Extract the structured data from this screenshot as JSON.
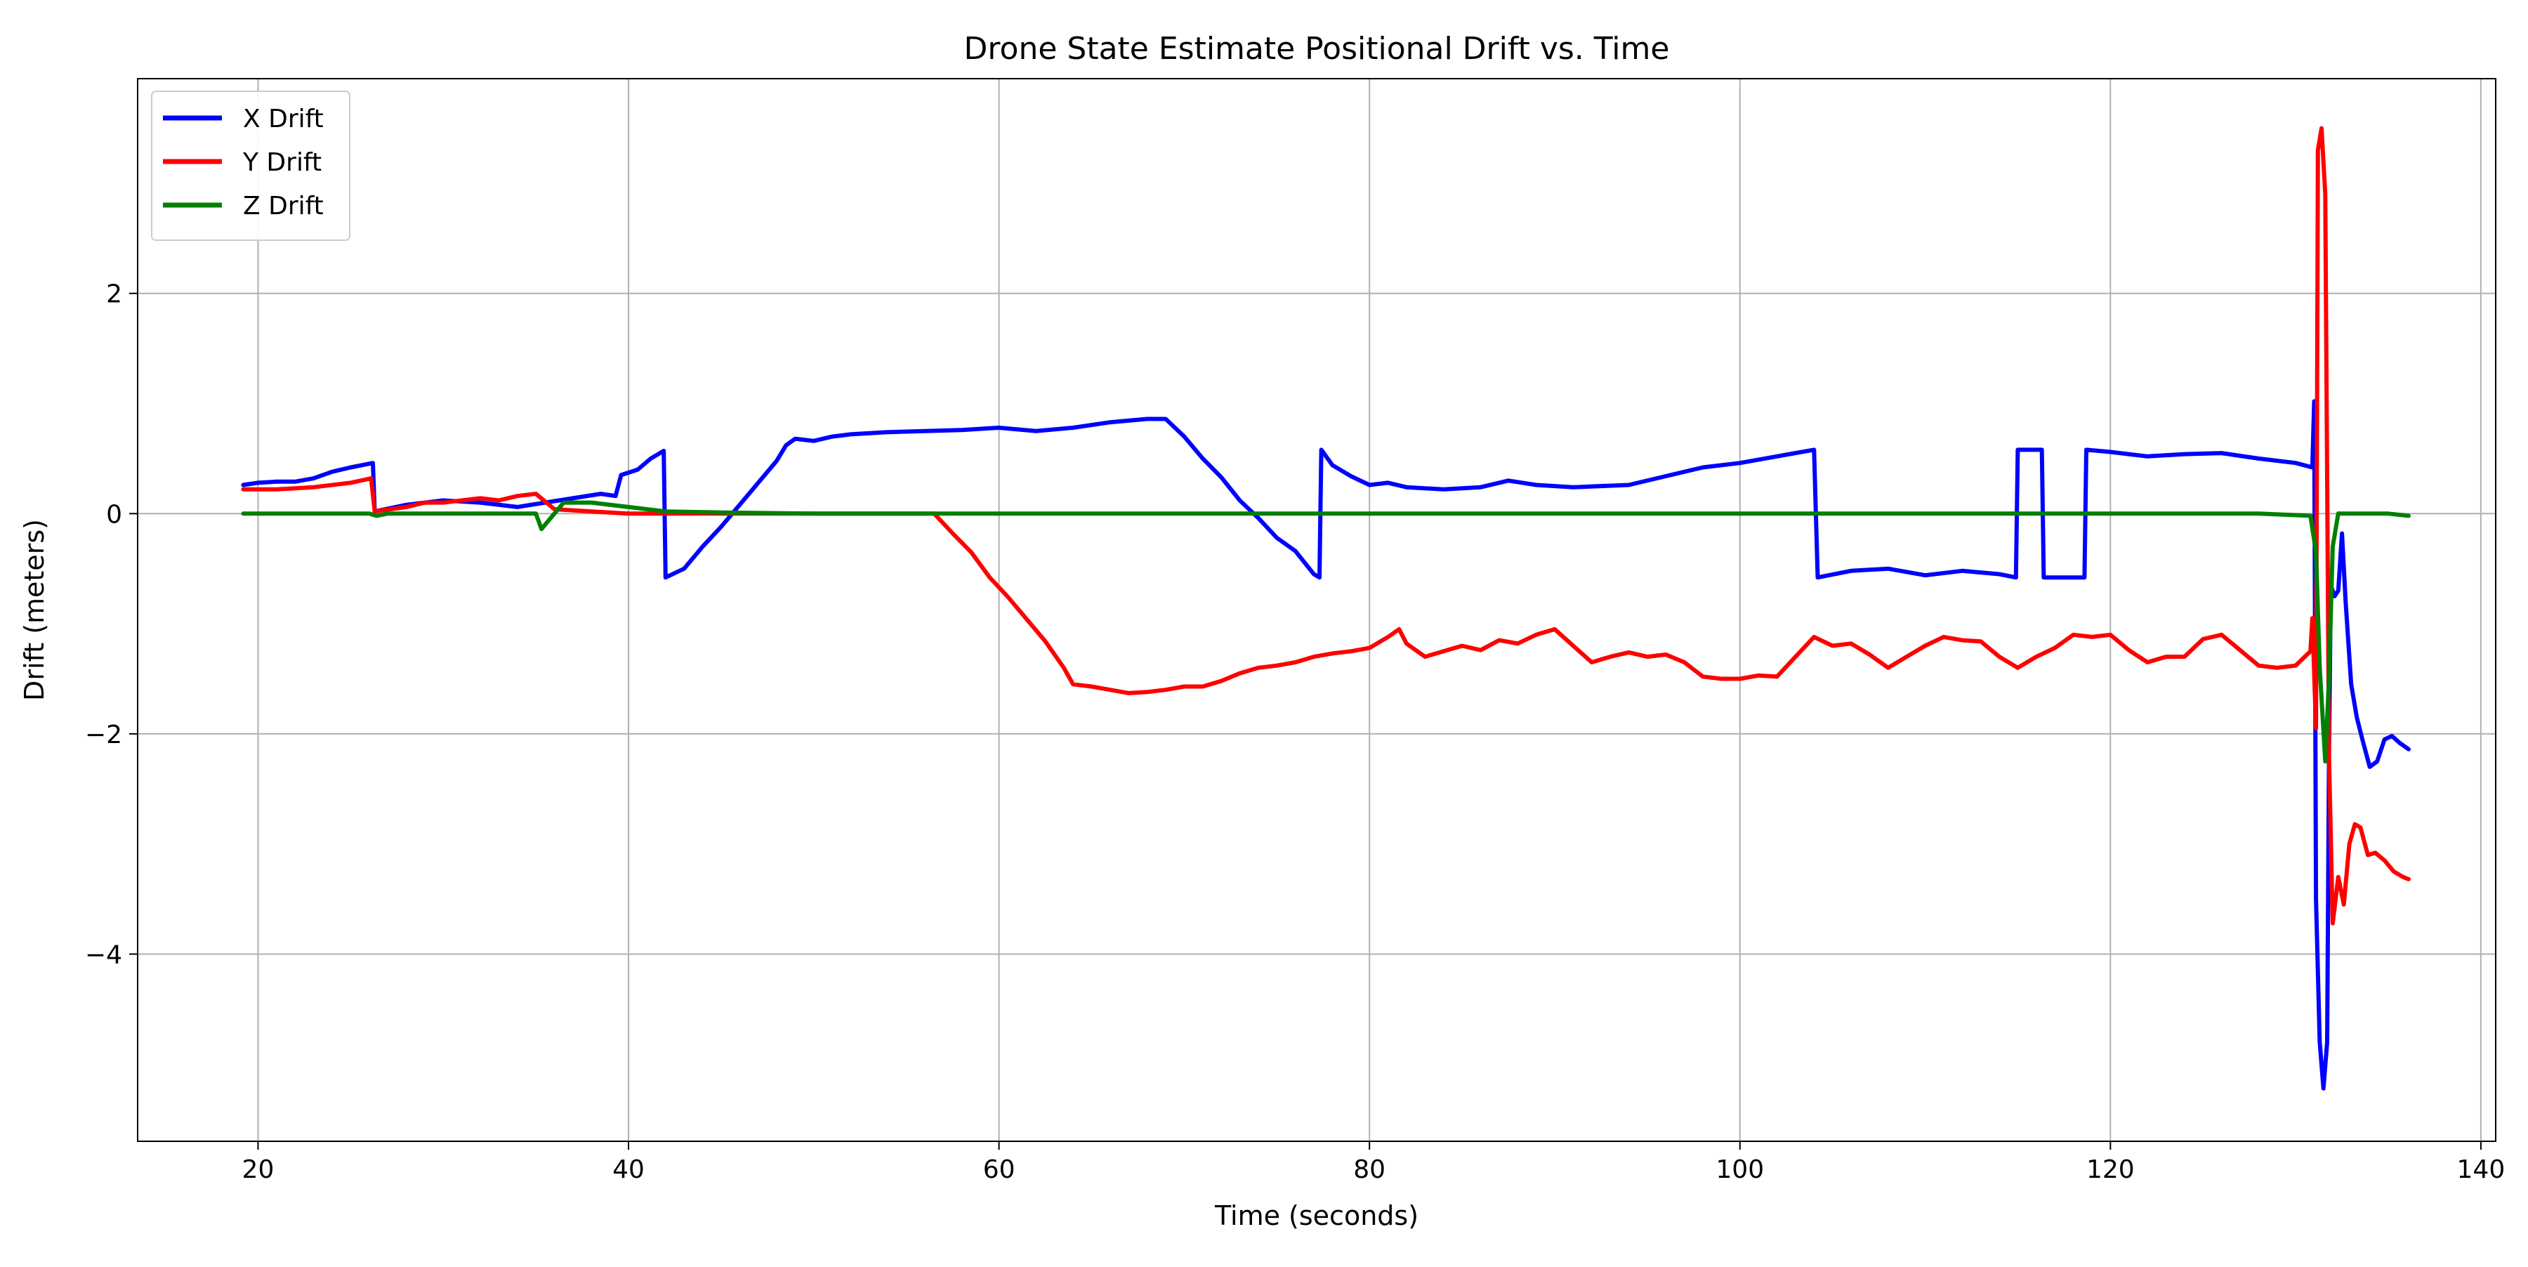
{
  "chart_data": {
    "type": "line",
    "title": "Drone State Estimate Positional Drift vs. Time",
    "xlabel": "Time (seconds)",
    "ylabel": "Drift (meters)",
    "xlim": [
      13.5,
      140.8
    ],
    "ylim": [
      -5.7,
      3.95
    ],
    "xticks": [
      20,
      40,
      60,
      80,
      100,
      120,
      140
    ],
    "yticks": [
      -4,
      -2,
      0,
      2
    ],
    "xtick_labels": [
      "20",
      "40",
      "60",
      "80",
      "100",
      "120",
      "140"
    ],
    "ytick_labels": [
      "−4",
      "−2",
      "0",
      "2"
    ],
    "grid": true,
    "legend_position": "top-left",
    "series": [
      {
        "name": "X Drift",
        "color": "#0000ff",
        "points": [
          [
            19.2,
            0.26
          ],
          [
            20,
            0.28
          ],
          [
            21,
            0.29
          ],
          [
            22,
            0.29
          ],
          [
            23,
            0.32
          ],
          [
            24,
            0.38
          ],
          [
            25,
            0.42
          ],
          [
            26.2,
            0.46
          ],
          [
            26.3,
            0.02
          ],
          [
            28,
            0.08
          ],
          [
            30,
            0.12
          ],
          [
            32,
            0.1
          ],
          [
            34,
            0.06
          ],
          [
            35.5,
            0.1
          ],
          [
            37,
            0.14
          ],
          [
            38.5,
            0.18
          ],
          [
            39.3,
            0.16
          ],
          [
            39.6,
            0.35
          ],
          [
            40.5,
            0.4
          ],
          [
            41.2,
            0.5
          ],
          [
            41.9,
            0.57
          ],
          [
            42,
            -0.58
          ],
          [
            43,
            -0.5
          ],
          [
            44,
            -0.3
          ],
          [
            45,
            -0.12
          ],
          [
            46,
            0.08
          ],
          [
            47,
            0.28
          ],
          [
            48,
            0.48
          ],
          [
            48.5,
            0.62
          ],
          [
            49,
            0.68
          ],
          [
            50,
            0.66
          ],
          [
            51,
            0.7
          ],
          [
            52,
            0.72
          ],
          [
            54,
            0.74
          ],
          [
            56,
            0.75
          ],
          [
            58,
            0.76
          ],
          [
            60,
            0.78
          ],
          [
            62,
            0.75
          ],
          [
            64,
            0.78
          ],
          [
            66,
            0.83
          ],
          [
            68,
            0.86
          ],
          [
            69,
            0.86
          ],
          [
            70,
            0.7
          ],
          [
            71,
            0.5
          ],
          [
            72,
            0.33
          ],
          [
            73,
            0.12
          ],
          [
            74,
            -0.04
          ],
          [
            75,
            -0.22
          ],
          [
            76,
            -0.34
          ],
          [
            77,
            -0.55
          ],
          [
            77.3,
            -0.58
          ],
          [
            77.4,
            0.58
          ],
          [
            78,
            0.44
          ],
          [
            79,
            0.34
          ],
          [
            80,
            0.26
          ],
          [
            81,
            0.28
          ],
          [
            82,
            0.24
          ],
          [
            84,
            0.22
          ],
          [
            86,
            0.24
          ],
          [
            87.5,
            0.3
          ],
          [
            89,
            0.26
          ],
          [
            91,
            0.24
          ],
          [
            94,
            0.26
          ],
          [
            96,
            0.34
          ],
          [
            98,
            0.42
          ],
          [
            100,
            0.46
          ],
          [
            102,
            0.52
          ],
          [
            104,
            0.58
          ],
          [
            104.2,
            -0.58
          ],
          [
            106,
            -0.52
          ],
          [
            108,
            -0.5
          ],
          [
            110,
            -0.56
          ],
          [
            112,
            -0.52
          ],
          [
            114,
            -0.55
          ],
          [
            114.9,
            -0.58
          ],
          [
            115,
            0.58
          ],
          [
            116.3,
            0.58
          ],
          [
            116.4,
            -0.58
          ],
          [
            118.6,
            -0.58
          ],
          [
            118.7,
            0.58
          ],
          [
            120,
            0.56
          ],
          [
            122,
            0.52
          ],
          [
            124,
            0.54
          ],
          [
            126,
            0.55
          ],
          [
            128,
            0.5
          ],
          [
            130,
            0.46
          ],
          [
            130.9,
            0.42
          ],
          [
            131,
            1.02
          ],
          [
            131.1,
            -3.5
          ],
          [
            131.3,
            -4.8
          ],
          [
            131.5,
            -5.22
          ],
          [
            131.7,
            -4.8
          ],
          [
            131.8,
            -2.2
          ],
          [
            131.9,
            -0.65
          ],
          [
            132.1,
            -0.75
          ],
          [
            132.3,
            -0.7
          ],
          [
            132.5,
            -0.18
          ],
          [
            132.7,
            -0.8
          ],
          [
            133,
            -1.55
          ],
          [
            133.3,
            -1.85
          ],
          [
            133.6,
            -2.05
          ],
          [
            134,
            -2.3
          ],
          [
            134.4,
            -2.25
          ],
          [
            134.8,
            -2.05
          ],
          [
            135.2,
            -2.02
          ],
          [
            135.6,
            -2.08
          ],
          [
            136.1,
            -2.14
          ]
        ]
      },
      {
        "name": "Y Drift",
        "color": "#ff0000",
        "points": [
          [
            19.2,
            0.22
          ],
          [
            21,
            0.22
          ],
          [
            23,
            0.24
          ],
          [
            25,
            0.28
          ],
          [
            26.1,
            0.32
          ],
          [
            26.3,
            0.02
          ],
          [
            28,
            0.06
          ],
          [
            29,
            0.1
          ],
          [
            30,
            0.1
          ],
          [
            31,
            0.12
          ],
          [
            32,
            0.14
          ],
          [
            33,
            0.12
          ],
          [
            34,
            0.16
          ],
          [
            35,
            0.18
          ],
          [
            36,
            0.04
          ],
          [
            38,
            0.02
          ],
          [
            40,
            0.0
          ],
          [
            45,
            0.0
          ],
          [
            50,
            0.0
          ],
          [
            55,
            0.0
          ],
          [
            56.5,
            0.0
          ],
          [
            57.5,
            -0.18
          ],
          [
            58.5,
            -0.35
          ],
          [
            59.5,
            -0.58
          ],
          [
            60.5,
            -0.76
          ],
          [
            61.5,
            -0.96
          ],
          [
            62.5,
            -1.16
          ],
          [
            63.5,
            -1.4
          ],
          [
            64,
            -1.55
          ],
          [
            65,
            -1.57
          ],
          [
            66,
            -1.6
          ],
          [
            67,
            -1.63
          ],
          [
            68,
            -1.62
          ],
          [
            69,
            -1.6
          ],
          [
            70,
            -1.57
          ],
          [
            71,
            -1.57
          ],
          [
            72,
            -1.52
          ],
          [
            73,
            -1.45
          ],
          [
            74,
            -1.4
          ],
          [
            75,
            -1.38
          ],
          [
            76,
            -1.35
          ],
          [
            77,
            -1.3
          ],
          [
            78,
            -1.27
          ],
          [
            79,
            -1.25
          ],
          [
            80,
            -1.22
          ],
          [
            81,
            -1.12
          ],
          [
            81.6,
            -1.05
          ],
          [
            82,
            -1.18
          ],
          [
            83,
            -1.3
          ],
          [
            84,
            -1.25
          ],
          [
            85,
            -1.2
          ],
          [
            86,
            -1.24
          ],
          [
            87,
            -1.15
          ],
          [
            88,
            -1.18
          ],
          [
            89,
            -1.1
          ],
          [
            90,
            -1.05
          ],
          [
            91,
            -1.2
          ],
          [
            92,
            -1.35
          ],
          [
            93,
            -1.3
          ],
          [
            94,
            -1.26
          ],
          [
            95,
            -1.3
          ],
          [
            96,
            -1.28
          ],
          [
            97,
            -1.35
          ],
          [
            98,
            -1.48
          ],
          [
            99,
            -1.5
          ],
          [
            100,
            -1.5
          ],
          [
            101,
            -1.47
          ],
          [
            102,
            -1.48
          ],
          [
            103,
            -1.3
          ],
          [
            104,
            -1.12
          ],
          [
            105,
            -1.2
          ],
          [
            106,
            -1.18
          ],
          [
            107,
            -1.28
          ],
          [
            108,
            -1.4
          ],
          [
            109,
            -1.3
          ],
          [
            110,
            -1.2
          ],
          [
            111,
            -1.12
          ],
          [
            112,
            -1.15
          ],
          [
            113,
            -1.16
          ],
          [
            114,
            -1.3
          ],
          [
            115,
            -1.4
          ],
          [
            116,
            -1.3
          ],
          [
            117,
            -1.22
          ],
          [
            118,
            -1.1
          ],
          [
            119,
            -1.12
          ],
          [
            120,
            -1.1
          ],
          [
            121,
            -1.24
          ],
          [
            122,
            -1.35
          ],
          [
            123,
            -1.3
          ],
          [
            124,
            -1.3
          ],
          [
            125,
            -1.14
          ],
          [
            126,
            -1.1
          ],
          [
            127,
            -1.24
          ],
          [
            128,
            -1.38
          ],
          [
            129,
            -1.4
          ],
          [
            130,
            -1.38
          ],
          [
            130.8,
            -1.25
          ],
          [
            130.9,
            -0.95
          ],
          [
            131.1,
            -1.95
          ],
          [
            131.2,
            3.3
          ],
          [
            131.4,
            3.5
          ],
          [
            131.6,
            2.9
          ],
          [
            131.8,
            -2.2
          ],
          [
            132,
            -3.72
          ],
          [
            132.3,
            -3.3
          ],
          [
            132.6,
            -3.55
          ],
          [
            132.9,
            -3.0
          ],
          [
            133.2,
            -2.82
          ],
          [
            133.5,
            -2.85
          ],
          [
            133.9,
            -3.1
          ],
          [
            134.3,
            -3.08
          ],
          [
            134.8,
            -3.15
          ],
          [
            135.3,
            -3.25
          ],
          [
            135.8,
            -3.3
          ],
          [
            136.1,
            -3.32
          ]
        ]
      },
      {
        "name": "Z Drift",
        "color": "#008000",
        "points": [
          [
            19.2,
            0.0
          ],
          [
            26,
            0.0
          ],
          [
            26.4,
            -0.02
          ],
          [
            27,
            0.0
          ],
          [
            30,
            0.0
          ],
          [
            34,
            0.0
          ],
          [
            35,
            0.0
          ],
          [
            35.3,
            -0.14
          ],
          [
            35.8,
            -0.04
          ],
          [
            36.5,
            0.1
          ],
          [
            38,
            0.1
          ],
          [
            40,
            0.06
          ],
          [
            42,
            0.02
          ],
          [
            45,
            0.01
          ],
          [
            50,
            0.0
          ],
          [
            60,
            0.0
          ],
          [
            70,
            0.0
          ],
          [
            80,
            0.0
          ],
          [
            90,
            0.0
          ],
          [
            100,
            0.0
          ],
          [
            110,
            0.0
          ],
          [
            120,
            0.0
          ],
          [
            128,
            0.0
          ],
          [
            130.8,
            -0.02
          ],
          [
            131.1,
            -0.35
          ],
          [
            131.3,
            -1.4
          ],
          [
            131.6,
            -2.25
          ],
          [
            131.8,
            -1.5
          ],
          [
            132,
            -0.3
          ],
          [
            132.3,
            0.0
          ],
          [
            133,
            0.0
          ],
          [
            134,
            0.0
          ],
          [
            135,
            0.0
          ],
          [
            136.1,
            -0.02
          ]
        ]
      }
    ]
  }
}
